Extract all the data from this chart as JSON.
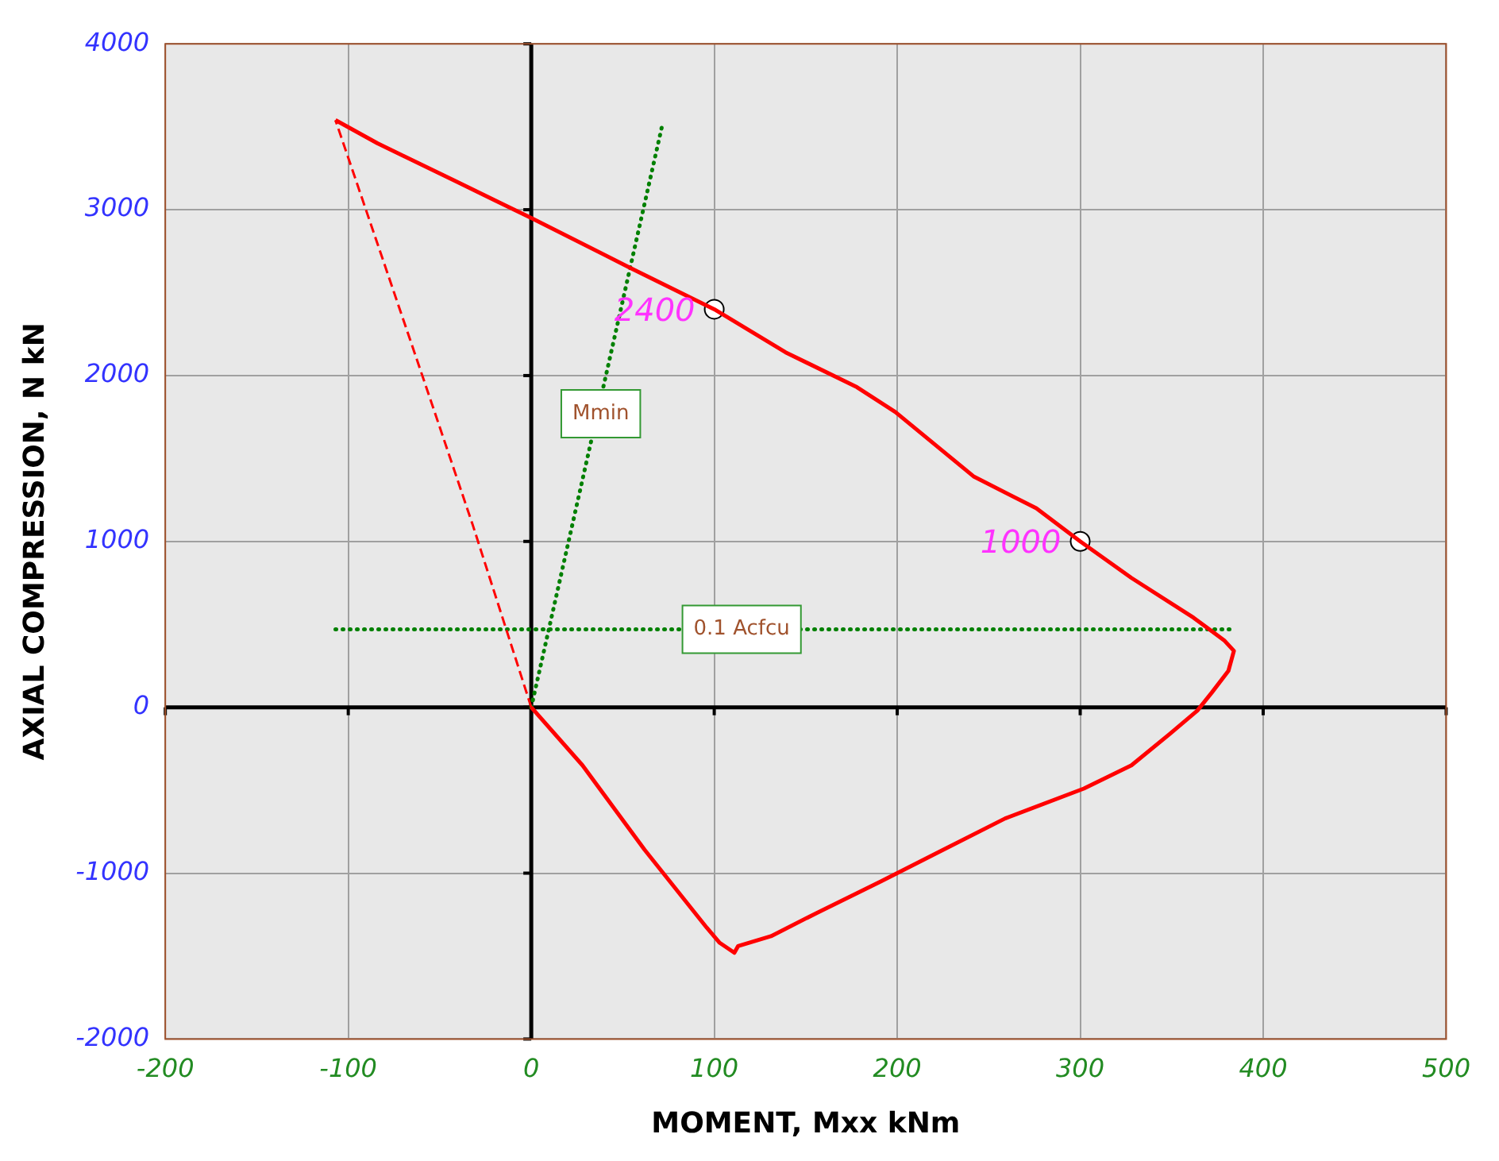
{
  "chart_data": {
    "type": "line",
    "xlabel": "MOMENT, Mxx kNm",
    "ylabel": "AXIAL COMPRESSION, N kN",
    "xlim": [
      -200,
      500
    ],
    "ylim": [
      -2000,
      4000
    ],
    "xticks": [
      -200,
      -100,
      0,
      100,
      200,
      300,
      400,
      500
    ],
    "yticks": [
      -2000,
      -1000,
      0,
      1000,
      2000,
      3000,
      4000
    ],
    "grid": true,
    "legend": false,
    "series": [
      {
        "color": "#ff0000",
        "line_style": "solid",
        "x": [
          -107,
          -84,
          -41,
          -15,
          0,
          54,
          100,
          139,
          178,
          199,
          242,
          276,
          300,
          328,
          362,
          379,
          384,
          381,
          372,
          364,
          349,
          328,
          302,
          259,
          225,
          191,
          156,
          131,
          113,
          111,
          103,
          96,
          62,
          28,
          0
        ],
        "values": [
          3540,
          3400,
          3170,
          3030,
          2950,
          2650,
          2400,
          2140,
          1930,
          1780,
          1390,
          1200,
          1000,
          780,
          540,
          400,
          340,
          220,
          90,
          -20,
          -160,
          -350,
          -490,
          -670,
          -860,
          -1050,
          -1240,
          -1380,
          -1440,
          -1480,
          -1420,
          -1330,
          -860,
          -350,
          0
        ]
      },
      {
        "color": "#ff0000",
        "line_style": "dashed",
        "x": [
          0,
          -32,
          -58,
          -107
        ],
        "values": [
          0,
          1100,
          1950,
          3540
        ]
      },
      {
        "color": "#008000",
        "line_style": "dotted",
        "x": [
          0,
          72
        ],
        "values": [
          0,
          3530
        ]
      },
      {
        "color": "#008000",
        "line_style": "dotted",
        "x": [
          -107,
          384
        ],
        "values": [
          470,
          470
        ]
      },
      {
        "type": "scatter",
        "color": "#ffffff",
        "marker": "circle",
        "x": [
          100,
          300
        ],
        "values": [
          2400,
          1000
        ],
        "value_labels": [
          "2400",
          "1000"
        ]
      }
    ],
    "annotations": [
      {
        "text": "Mmin",
        "x": 38,
        "y": 1770
      },
      {
        "text": "0.1 Acfcu",
        "x": 115,
        "y": 470
      }
    ]
  }
}
